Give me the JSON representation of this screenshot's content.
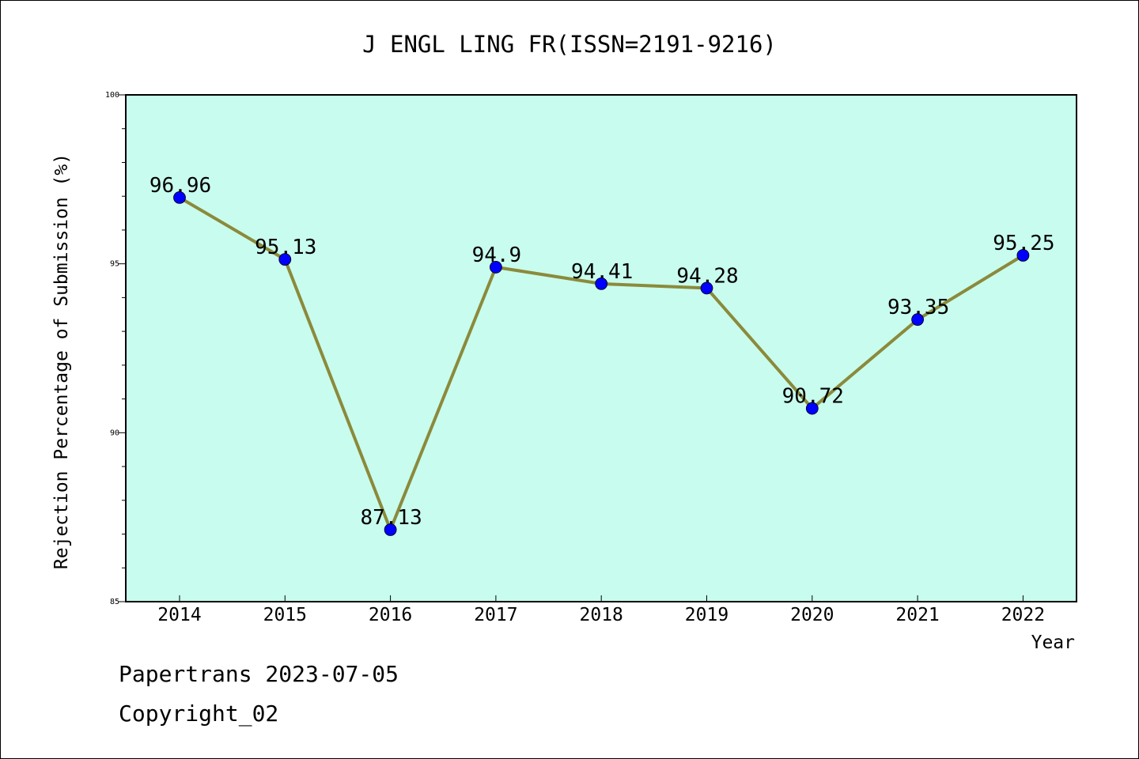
{
  "chart_data": {
    "type": "line",
    "title": "J ENGL LING FR(ISSN=2191-9216)",
    "xlabel": "Year",
    "ylabel": "Rejection Percentage of Submission (%)",
    "categories": [
      "2014",
      "2015",
      "2016",
      "2017",
      "2018",
      "2019",
      "2020",
      "2021",
      "2022"
    ],
    "values": [
      96.96,
      95.13,
      87.13,
      94.9,
      94.41,
      94.28,
      90.72,
      93.35,
      95.25
    ],
    "data_labels": [
      "96.96",
      "95.13",
      "87.13",
      "94.9",
      "94.41",
      "94.28",
      "90.72",
      "93.35",
      "95.25"
    ],
    "ylim": [
      85,
      100
    ],
    "yticks": [
      85,
      90,
      95,
      100
    ],
    "ytick_labels": [
      "85",
      "90",
      "95",
      "100"
    ],
    "grid": false,
    "colors": {
      "plot_background": "#c8fcee",
      "line": "#8b8a3b",
      "marker": "#0000ff"
    }
  },
  "footer": {
    "line1": "Papertrans 2023-07-05",
    "line2": "Copyright_02"
  }
}
